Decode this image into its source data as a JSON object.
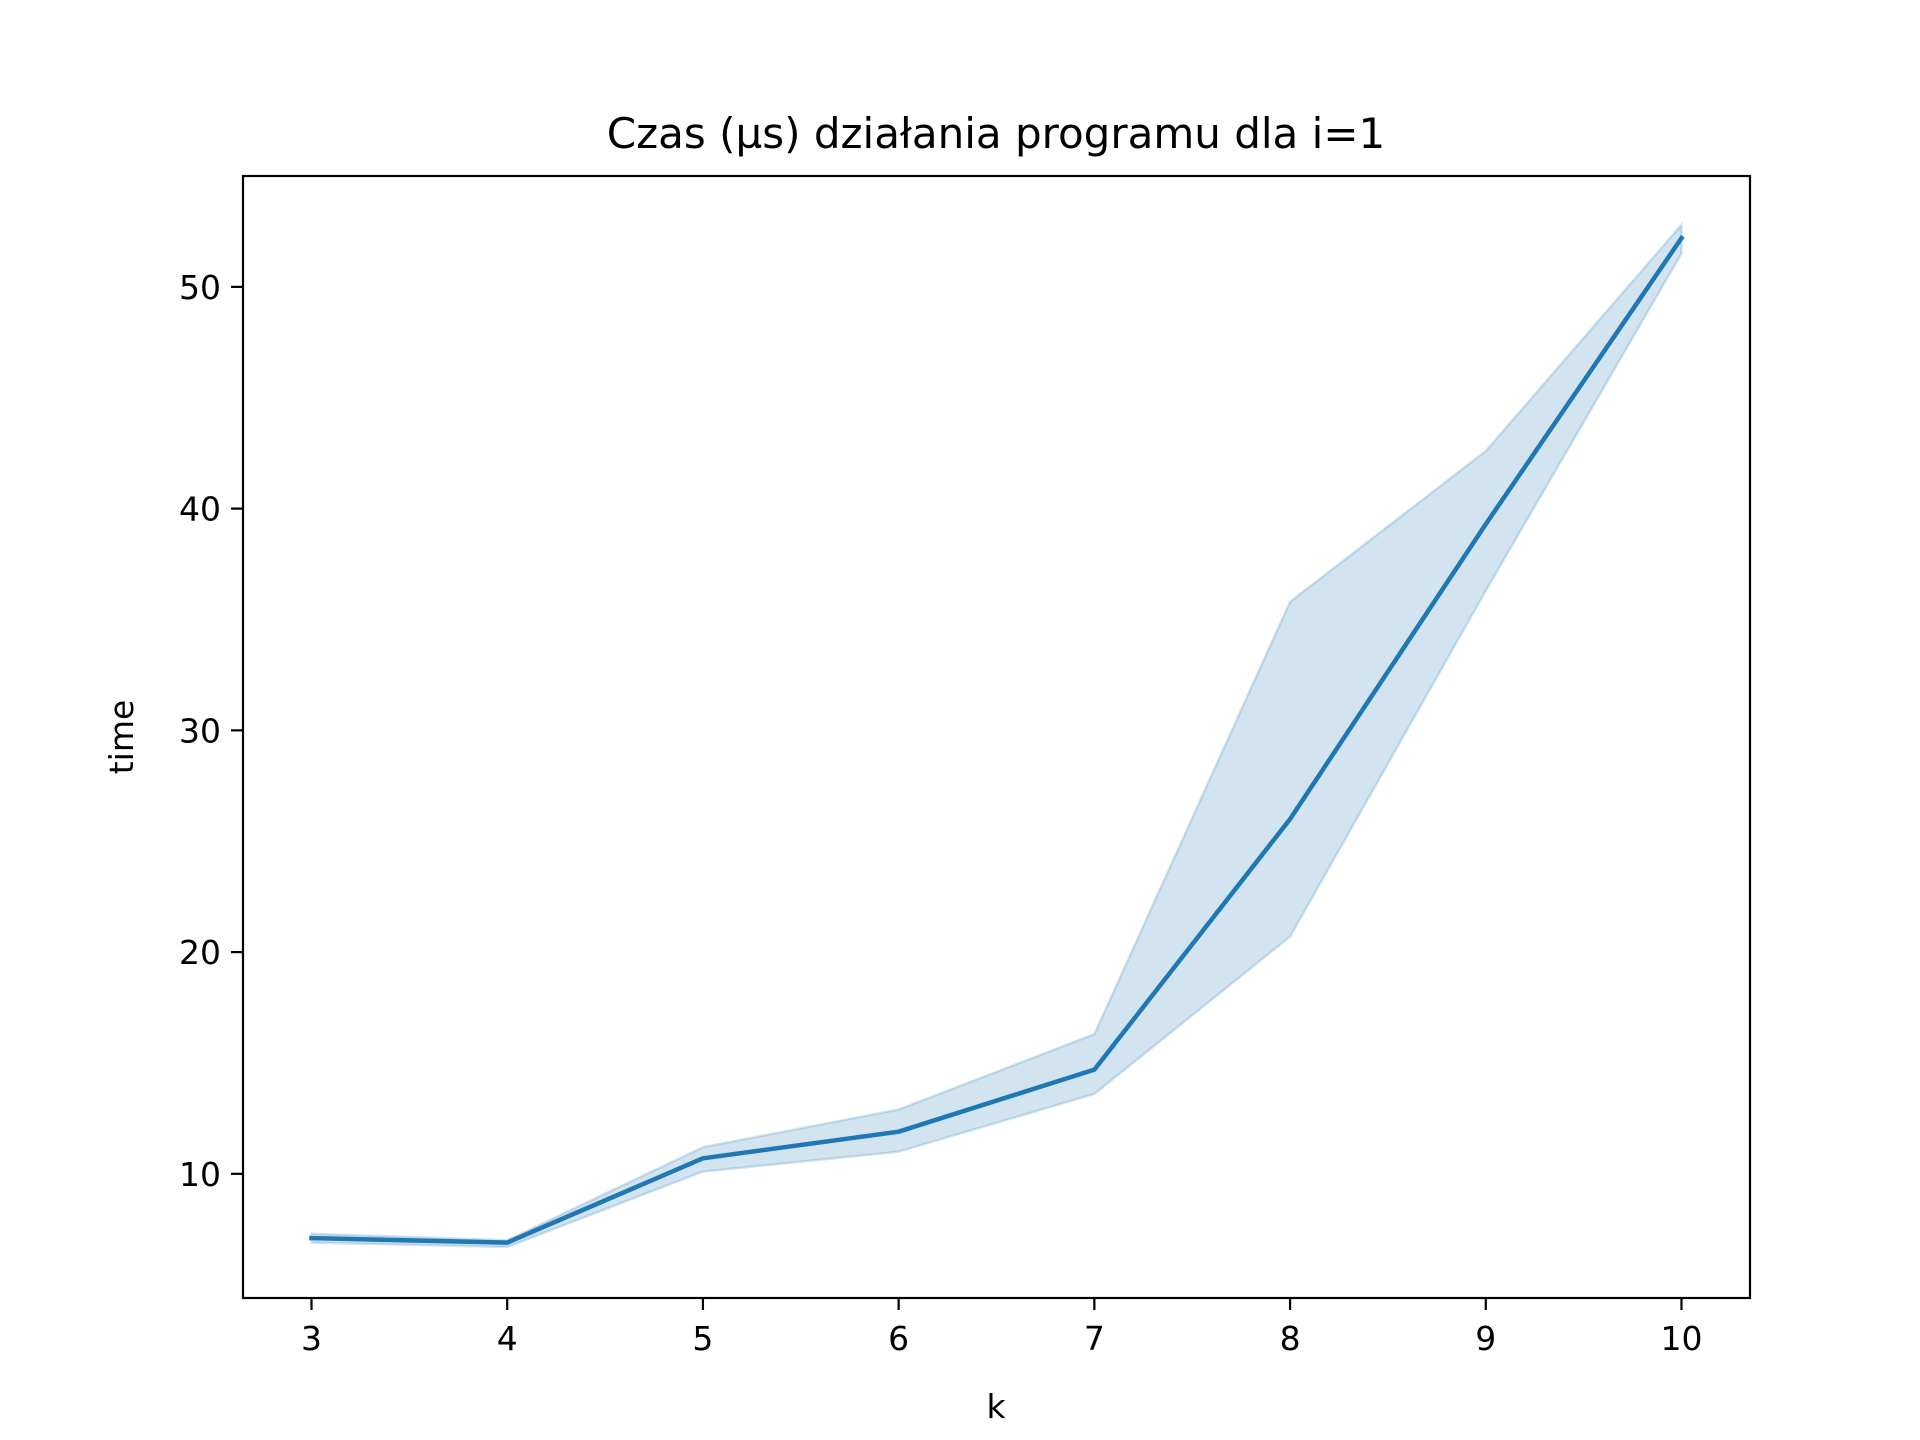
{
  "chart_data": {
    "type": "line",
    "title": "Czas (µs) działania programu dla i=1",
    "xlabel": "k",
    "ylabel": "time",
    "x": [
      3,
      4,
      5,
      6,
      7,
      8,
      9,
      10
    ],
    "series": [
      {
        "values": [
          7.1,
          6.9,
          10.7,
          11.9,
          14.7,
          26.0,
          39.3,
          52.2
        ],
        "ci_lower": [
          6.9,
          6.7,
          10.1,
          11.0,
          13.6,
          20.7,
          36.3,
          51.5
        ],
        "ci_upper": [
          7.3,
          7.0,
          11.2,
          12.9,
          16.3,
          35.8,
          42.6,
          52.8
        ],
        "color": "#1f77b4",
        "band_color": "#1f77b4"
      }
    ],
    "xticks": [
      3,
      4,
      5,
      6,
      7,
      8,
      9,
      10
    ],
    "xtick_labels": [
      "3",
      "4",
      "5",
      "6",
      "7",
      "8",
      "9",
      "10"
    ],
    "yticks": [
      10,
      20,
      30,
      40,
      50
    ],
    "ytick_labels": [
      "10",
      "20",
      "30",
      "40",
      "50"
    ],
    "xlim": [
      2.65,
      10.35
    ],
    "ylim": [
      4.4,
      55.0
    ],
    "grid": false,
    "legend": "none"
  }
}
